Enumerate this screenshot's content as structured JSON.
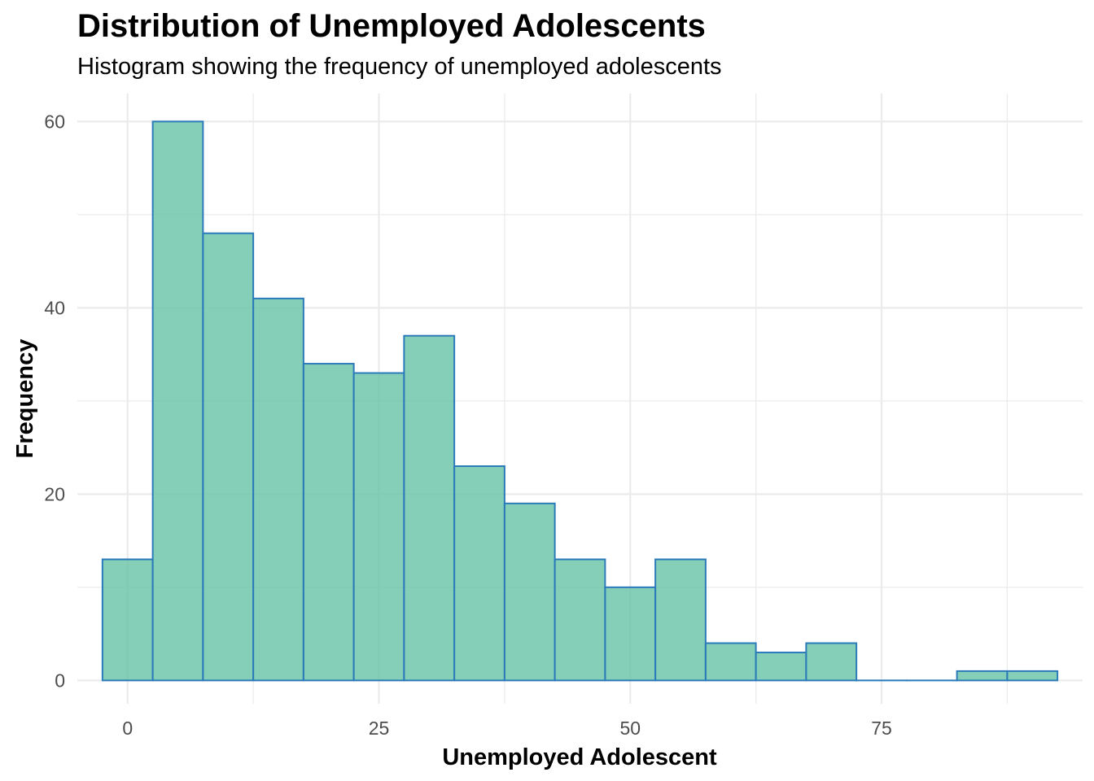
{
  "chart_data": {
    "type": "bar",
    "title": "Distribution of Unemployed Adolescents",
    "subtitle": "Histogram showing the frequency of unemployed adolescents",
    "xlabel": "Unemployed Adolescent",
    "ylabel": "Frequency",
    "bin_width": 5,
    "bins": [
      {
        "start": -2.5,
        "end": 2.5,
        "count": 13
      },
      {
        "start": 2.5,
        "end": 7.5,
        "count": 60
      },
      {
        "start": 7.5,
        "end": 12.5,
        "count": 48
      },
      {
        "start": 12.5,
        "end": 17.5,
        "count": 41
      },
      {
        "start": 17.5,
        "end": 22.5,
        "count": 34
      },
      {
        "start": 22.5,
        "end": 27.5,
        "count": 33
      },
      {
        "start": 27.5,
        "end": 32.5,
        "count": 37
      },
      {
        "start": 32.5,
        "end": 37.5,
        "count": 23
      },
      {
        "start": 37.5,
        "end": 42.5,
        "count": 19
      },
      {
        "start": 42.5,
        "end": 47.5,
        "count": 13
      },
      {
        "start": 47.5,
        "end": 52.5,
        "count": 10
      },
      {
        "start": 52.5,
        "end": 57.5,
        "count": 13
      },
      {
        "start": 57.5,
        "end": 62.5,
        "count": 4
      },
      {
        "start": 62.5,
        "end": 67.5,
        "count": 3
      },
      {
        "start": 67.5,
        "end": 72.5,
        "count": 4
      },
      {
        "start": 72.5,
        "end": 77.5,
        "count": 0
      },
      {
        "start": 77.5,
        "end": 82.5,
        "count": 0
      },
      {
        "start": 82.5,
        "end": 87.5,
        "count": 1
      },
      {
        "start": 87.5,
        "end": 92.5,
        "count": 1
      }
    ],
    "xlim": [
      -5,
      95
    ],
    "ylim": [
      -2.5,
      63
    ],
    "x_ticks": [
      0,
      25,
      50,
      75
    ],
    "y_ticks": [
      0,
      20,
      40,
      60
    ],
    "grid": true,
    "legend": "none",
    "colors": {
      "fill": "#66c2a5",
      "outline": "#2b7bba",
      "grid": "#ebebeb"
    }
  }
}
